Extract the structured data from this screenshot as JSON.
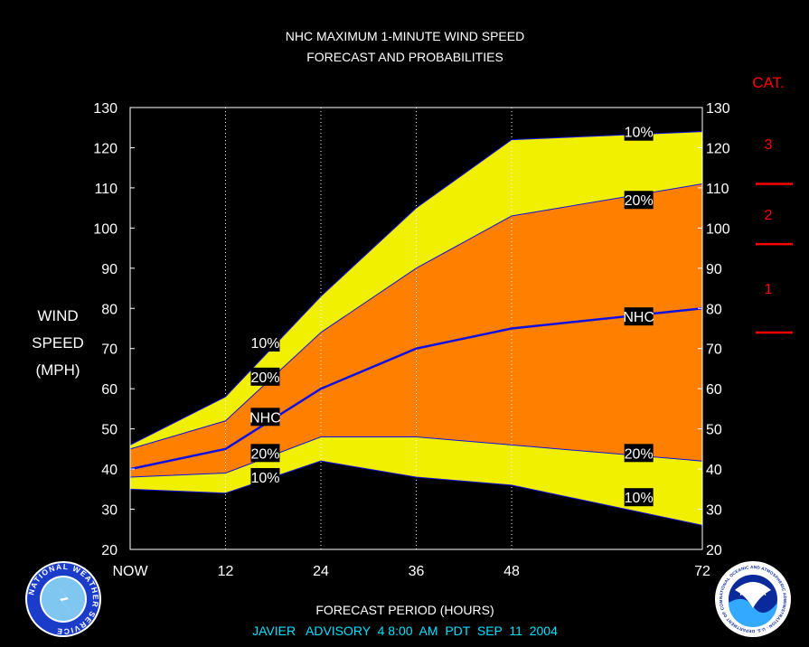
{
  "chart_data": {
    "type": "area",
    "title": [
      "NHC MAXIMUM 1-MINUTE WIND SPEED",
      "FORECAST AND PROBABILITIES"
    ],
    "xlabel": "FORECAST PERIOD (HOURS)",
    "ylabel": [
      "WIND",
      "SPEED",
      "(MPH)"
    ],
    "x": [
      0,
      12,
      24,
      36,
      48,
      72
    ],
    "x_tick_labels": [
      "NOW",
      "12",
      "24",
      "36",
      "48",
      "72"
    ],
    "xlim": [
      0,
      72
    ],
    "ylim": [
      20,
      130
    ],
    "y_ticks": [
      20,
      30,
      40,
      50,
      60,
      70,
      80,
      90,
      100,
      110,
      120,
      130
    ],
    "vertical_gridlines": [
      12,
      24,
      36,
      48
    ],
    "bands": {
      "upper_10": [
        46,
        58,
        83,
        105,
        122,
        124
      ],
      "upper_20": [
        45,
        52,
        74,
        90,
        103,
        111
      ],
      "nhc": [
        40,
        45,
        60,
        70,
        75,
        80
      ],
      "lower_20": [
        38,
        39,
        48,
        48,
        46,
        42
      ],
      "lower_10": [
        35,
        34,
        42,
        38,
        36,
        26
      ]
    },
    "series": [
      {
        "name": "10%",
        "key": "upper_10"
      },
      {
        "name": "20%",
        "key": "upper_20"
      },
      {
        "name": "NHC",
        "key": "nhc"
      },
      {
        "name": "20%",
        "key": "lower_20"
      },
      {
        "name": "10%",
        "key": "lower_10"
      }
    ],
    "labels": [
      {
        "text": "10%",
        "x": 17,
        "y": 71.5
      },
      {
        "text": "20%",
        "x": 17,
        "y": 63
      },
      {
        "text": "NHC",
        "x": 17,
        "y": 53
      },
      {
        "text": "20%",
        "x": 17,
        "y": 44
      },
      {
        "text": "10%",
        "x": 17,
        "y": 38
      },
      {
        "text": "10%",
        "x": 64,
        "y": 124
      },
      {
        "text": "20%",
        "x": 64,
        "y": 107
      },
      {
        "text": "NHC",
        "x": 64,
        "y": 78
      },
      {
        "text": "20%",
        "x": 64,
        "y": 44
      },
      {
        "text": "10%",
        "x": 64,
        "y": 33
      }
    ],
    "category": {
      "heading": "CAT.",
      "boundaries": [
        74,
        96,
        111
      ],
      "labels": [
        {
          "text": "1",
          "y": 85
        },
        {
          "text": "2",
          "y": 103.5
        },
        {
          "text": "3",
          "y": 121
        }
      ]
    },
    "colors": {
      "outer_band": "#f0f000",
      "inner_band": "#ff8000",
      "nhc_line": "#1010e0",
      "text": "#ffffff",
      "category": "#ff0000",
      "footer": "#00e0ff",
      "background": "#000000"
    }
  },
  "footer": "JAVIER   ADVISORY  4 8:00  AM  PDT  SEP  11  2004",
  "logos": {
    "left": "nws-logo",
    "left_text": "NATIONAL WEATHER SERVICE",
    "right": "noaa-logo",
    "right_text": "NOAA",
    "right_ring_text": "NATIONAL OCEANIC AND ATMOSPHERIC ADMINISTRATION · U.S. DEPARTMENT OF COMMERCE"
  }
}
